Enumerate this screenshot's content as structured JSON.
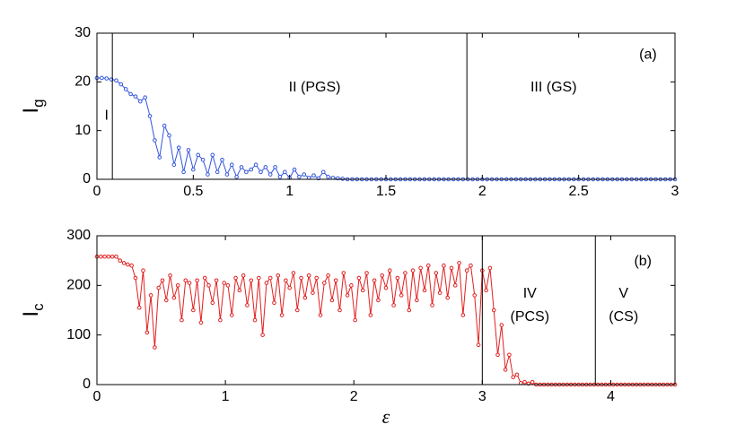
{
  "chart_data": [
    {
      "type": "line",
      "ylabel": "I",
      "ylabel_sub": "g",
      "color": "#3355dd",
      "xlim": [
        0,
        3
      ],
      "ylim": [
        0,
        30
      ],
      "xticks": [
        0,
        0.5,
        1,
        1.5,
        2,
        2.5,
        3
      ],
      "yticks": [
        0,
        10,
        20,
        30
      ],
      "vlines": [
        0.08,
        1.92
      ],
      "annotations": [
        {
          "text": "I",
          "x": 0.05,
          "y": 13
        },
        {
          "text": "II (PGS)",
          "x": 1.13,
          "y": 18.8
        },
        {
          "text": "III (GS)",
          "x": 2.37,
          "y": 18.8
        },
        {
          "text": "(a)",
          "x": 2.86,
          "y": 25.5
        }
      ],
      "x": [
        0,
        0.025,
        0.05,
        0.075,
        0.1,
        0.125,
        0.15,
        0.175,
        0.2,
        0.225,
        0.25,
        0.275,
        0.3,
        0.325,
        0.35,
        0.375,
        0.4,
        0.425,
        0.45,
        0.475,
        0.5,
        0.525,
        0.55,
        0.575,
        0.6,
        0.625,
        0.65,
        0.675,
        0.7,
        0.725,
        0.75,
        0.775,
        0.8,
        0.825,
        0.85,
        0.875,
        0.9,
        0.925,
        0.95,
        0.975,
        1,
        1.025,
        1.05,
        1.075,
        1.1,
        1.125,
        1.15,
        1.175,
        1.2,
        1.225,
        1.25,
        1.275,
        1.3,
        1.325,
        1.35,
        1.375,
        1.4,
        1.425,
        1.45,
        1.475,
        1.5,
        1.525,
        1.55,
        1.575,
        1.6,
        1.625,
        1.65,
        1.675,
        1.7,
        1.725,
        1.75,
        1.775,
        1.8,
        1.825,
        1.85,
        1.875,
        1.9,
        1.925,
        1.95,
        1.975,
        2,
        2.025,
        2.05,
        2.075,
        2.1,
        2.125,
        2.15,
        2.175,
        2.2,
        2.225,
        2.25,
        2.275,
        2.3,
        2.325,
        2.35,
        2.375,
        2.4,
        2.425,
        2.45,
        2.475,
        2.5,
        2.525,
        2.55,
        2.575,
        2.6,
        2.625,
        2.65,
        2.675,
        2.7,
        2.725,
        2.75,
        2.775,
        2.8,
        2.825,
        2.85,
        2.875,
        2.9,
        2.925,
        2.95,
        2.975,
        3
      ],
      "values": [
        20.8,
        20.8,
        20.7,
        20.5,
        20.3,
        19.5,
        18.5,
        17.5,
        17,
        16,
        16.8,
        13,
        8,
        4.5,
        11,
        9,
        3,
        6.5,
        1.5,
        6,
        2,
        5,
        4,
        1,
        5,
        1.5,
        4,
        1,
        3,
        0.5,
        2.5,
        1.5,
        2,
        3,
        1.5,
        2.5,
        1,
        2.5,
        0.5,
        1.5,
        0.3,
        2,
        0.5,
        1,
        0.3,
        0.8,
        0.2,
        1.5,
        0.5,
        0.3,
        0.2,
        0.1,
        0,
        0,
        0,
        0,
        0,
        0,
        0,
        0,
        0,
        0,
        0,
        0,
        0,
        0,
        0,
        0,
        0,
        0,
        0,
        0,
        0,
        0,
        0,
        0,
        0,
        0,
        0,
        0,
        0,
        0,
        0,
        0,
        0,
        0,
        0,
        0,
        0,
        0,
        0,
        0,
        0,
        0,
        0,
        0,
        0,
        0,
        0,
        0,
        0,
        0,
        0,
        0,
        0,
        0,
        0,
        0,
        0,
        0,
        0,
        0,
        0,
        0,
        0,
        0,
        0,
        0,
        0,
        0,
        0
      ]
    },
    {
      "type": "line",
      "ylabel": "I",
      "ylabel_sub": "c",
      "xlabel": "ε",
      "color": "#e02020",
      "xlim": [
        0,
        4.5
      ],
      "ylim": [
        0,
        300
      ],
      "xticks": [
        0,
        1,
        2,
        3,
        4
      ],
      "yticks": [
        0,
        100,
        200,
        300
      ],
      "vlines": [
        3.0,
        3.88
      ],
      "annotations": [
        {
          "text": "IV",
          "x": 3.37,
          "y": 183
        },
        {
          "text": "(PCS)",
          "x": 3.37,
          "y": 136
        },
        {
          "text": "V",
          "x": 4.1,
          "y": 183
        },
        {
          "text": "(CS)",
          "x": 4.1,
          "y": 136
        },
        {
          "text": "(b)",
          "x": 4.25,
          "y": 248
        }
      ],
      "x": [
        0,
        0.03,
        0.06,
        0.09,
        0.12,
        0.15,
        0.18,
        0.21,
        0.24,
        0.27,
        0.3,
        0.33,
        0.36,
        0.39,
        0.42,
        0.45,
        0.48,
        0.51,
        0.54,
        0.57,
        0.6,
        0.63,
        0.66,
        0.69,
        0.72,
        0.75,
        0.78,
        0.81,
        0.84,
        0.87,
        0.9,
        0.93,
        0.96,
        0.99,
        1.02,
        1.05,
        1.08,
        1.11,
        1.14,
        1.17,
        1.2,
        1.23,
        1.26,
        1.29,
        1.32,
        1.35,
        1.38,
        1.41,
        1.44,
        1.47,
        1.5,
        1.53,
        1.56,
        1.59,
        1.62,
        1.65,
        1.68,
        1.71,
        1.74,
        1.77,
        1.8,
        1.83,
        1.86,
        1.89,
        1.92,
        1.95,
        1.98,
        2.01,
        2.04,
        2.07,
        2.1,
        2.13,
        2.16,
        2.19,
        2.22,
        2.25,
        2.28,
        2.31,
        2.34,
        2.37,
        2.4,
        2.43,
        2.46,
        2.49,
        2.52,
        2.55,
        2.58,
        2.61,
        2.64,
        2.67,
        2.7,
        2.73,
        2.76,
        2.79,
        2.82,
        2.85,
        2.88,
        2.91,
        2.94,
        2.97,
        3,
        3.03,
        3.06,
        3.09,
        3.12,
        3.15,
        3.18,
        3.21,
        3.24,
        3.27,
        3.3,
        3.33,
        3.36,
        3.39,
        3.42,
        3.45,
        3.48,
        3.51,
        3.54,
        3.57,
        3.6,
        3.63,
        3.66,
        3.69,
        3.72,
        3.75,
        3.78,
        3.81,
        3.84,
        3.87,
        3.9,
        3.93,
        3.96,
        3.99,
        4.02,
        4.05,
        4.08,
        4.11,
        4.14,
        4.17,
        4.2,
        4.23,
        4.26,
        4.29,
        4.32,
        4.35,
        4.38,
        4.41,
        4.44,
        4.47,
        4.5
      ],
      "values": [
        258,
        258,
        258,
        258,
        258,
        258,
        250,
        245,
        242,
        240,
        215,
        155,
        230,
        105,
        180,
        75,
        195,
        210,
        170,
        220,
        175,
        200,
        130,
        210,
        205,
        150,
        210,
        125,
        215,
        200,
        165,
        210,
        130,
        205,
        200,
        140,
        215,
        190,
        220,
        160,
        210,
        130,
        215,
        100,
        205,
        215,
        165,
        220,
        140,
        210,
        195,
        225,
        150,
        215,
        175,
        220,
        185,
        215,
        140,
        205,
        220,
        170,
        210,
        150,
        225,
        180,
        200,
        130,
        215,
        190,
        225,
        140,
        210,
        170,
        220,
        195,
        230,
        160,
        215,
        180,
        225,
        150,
        230,
        170,
        235,
        190,
        240,
        160,
        225,
        185,
        240,
        175,
        235,
        200,
        245,
        140,
        230,
        240,
        180,
        80,
        230,
        190,
        235,
        150,
        60,
        120,
        30,
        60,
        15,
        20,
        3,
        5,
        2,
        5,
        0,
        0,
        0,
        0,
        0,
        0,
        0,
        0,
        0,
        0,
        0,
        0,
        0,
        0,
        0,
        0,
        0,
        0,
        0,
        0,
        0,
        0,
        0,
        0,
        0,
        0,
        0,
        0,
        0,
        0,
        0,
        0,
        0,
        0,
        0,
        0,
        0
      ]
    }
  ]
}
